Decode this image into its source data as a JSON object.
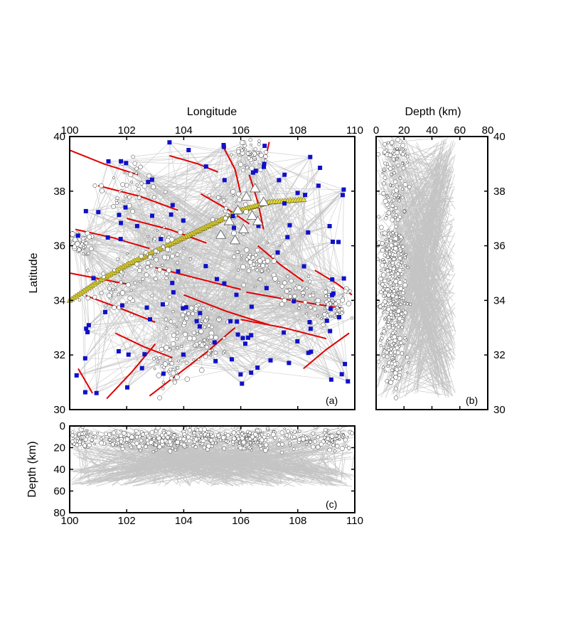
{
  "map": {
    "xlabel": "Longitude",
    "ylabel": "Latitude",
    "x_ticks": [
      "100",
      "102",
      "104",
      "106",
      "108",
      "110"
    ],
    "y_ticks": [
      "30",
      "32",
      "34",
      "36",
      "38",
      "40"
    ],
    "xlim": [
      100,
      110
    ],
    "ylim": [
      30,
      40
    ],
    "panel_tag": "(a)"
  },
  "depth_lat": {
    "xlabel": "Depth (km)",
    "x_ticks": [
      "0",
      "20",
      "40",
      "60",
      "80"
    ],
    "y_ticks": [
      "30",
      "32",
      "34",
      "36",
      "38",
      "40"
    ],
    "xlim": [
      0,
      80
    ],
    "panel_tag": "(b)"
  },
  "depth_lon": {
    "ylabel": "Depth (km)",
    "x_ticks": [
      "100",
      "102",
      "104",
      "106",
      "108",
      "110"
    ],
    "y_ticks": [
      "0",
      "20",
      "40",
      "60",
      "80"
    ],
    "ylim": [
      0,
      80
    ],
    "panel_tag": "(c)"
  },
  "colors": {
    "ray_paths": "#c4c4c4",
    "faults": "#e00000",
    "stations": "#1010c8",
    "events": "#ffffff",
    "profile": "#e6dc3c"
  },
  "layers": {
    "events_symbol": "white circles",
    "stations_symbol": "blue squares",
    "profile_stations_symbol": "white triangles",
    "faults_symbol": "red lines"
  }
}
